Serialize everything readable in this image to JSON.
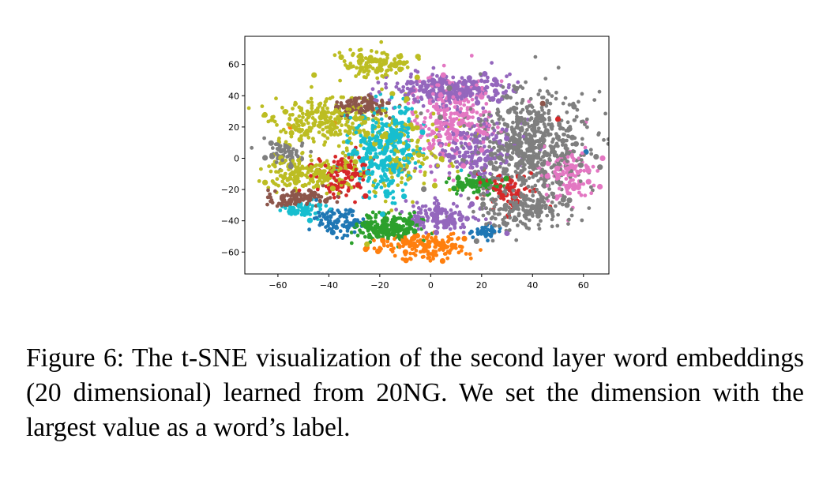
{
  "caption": "Figure 6: The t-SNE visualization of the second layer word embeddings (20 dimensional) learned from 20NG. We set the dimension with the largest value as a word’s label.",
  "chart_data": {
    "type": "scatter",
    "title": "",
    "xlabel": "",
    "ylabel": "",
    "xlim": [
      -73,
      70
    ],
    "ylim": [
      -74,
      78
    ],
    "xticks": [
      -60,
      -40,
      -20,
      0,
      20,
      40,
      60
    ],
    "yticks": [
      60,
      40,
      20,
      0,
      -20,
      -40,
      -60
    ],
    "xtick_labels": [
      "−60",
      "−40",
      "−20",
      "0",
      "20",
      "40",
      "60"
    ],
    "ytick_labels": [
      "60",
      "40",
      "20",
      "0",
      "−20",
      "−40",
      "−60"
    ],
    "grid": false,
    "legend": "none",
    "colors": [
      "#1f77b4",
      "#ff7f0e",
      "#2ca02c",
      "#d62728",
      "#9467bd",
      "#8c564b",
      "#e377c2",
      "#7f7f7f",
      "#bcbd22",
      "#17becf"
    ],
    "clusters": [
      {
        "name": "grey-right",
        "color": "#7f7f7f",
        "cx": 38,
        "cy": 8,
        "sx": 12,
        "sy": 18,
        "n": 650
      },
      {
        "name": "grey-lower",
        "color": "#7f7f7f",
        "cx": 35,
        "cy": -33,
        "sx": 9,
        "sy": 6,
        "n": 160
      },
      {
        "name": "grey-left",
        "color": "#7f7f7f",
        "cx": -57,
        "cy": 3,
        "sx": 4,
        "sy": 4,
        "n": 60
      },
      {
        "name": "purple-top",
        "color": "#9467bd",
        "cx": 8,
        "cy": 44,
        "sx": 12,
        "sy": 5,
        "n": 260
      },
      {
        "name": "purple-mid",
        "color": "#9467bd",
        "cx": 18,
        "cy": 5,
        "sx": 8,
        "sy": 10,
        "n": 180
      },
      {
        "name": "purple-bottom",
        "color": "#9467bd",
        "cx": 5,
        "cy": -38,
        "sx": 7,
        "sy": 5,
        "n": 130
      },
      {
        "name": "pink-center",
        "color": "#e377c2",
        "cx": 8,
        "cy": 25,
        "sx": 8,
        "sy": 14,
        "n": 260
      },
      {
        "name": "pink-right",
        "color": "#e377c2",
        "cx": 55,
        "cy": -10,
        "sx": 5,
        "sy": 10,
        "n": 110
      },
      {
        "name": "olive-top",
        "color": "#bcbd22",
        "cx": -22,
        "cy": 60,
        "sx": 7,
        "sy": 4,
        "n": 120
      },
      {
        "name": "olive-upper-left",
        "color": "#bcbd22",
        "cx": -42,
        "cy": 25,
        "sx": 10,
        "sy": 8,
        "n": 260
      },
      {
        "name": "olive-lower-left",
        "color": "#bcbd22",
        "cx": -47,
        "cy": -10,
        "sx": 10,
        "sy": 5,
        "n": 200
      },
      {
        "name": "olive-center",
        "color": "#bcbd22",
        "cx": -12,
        "cy": 5,
        "sx": 10,
        "sy": 14,
        "n": 160
      },
      {
        "name": "cyan-center",
        "color": "#17becf",
        "cx": -18,
        "cy": 5,
        "sx": 7,
        "sy": 14,
        "n": 320
      },
      {
        "name": "cyan-left",
        "color": "#17becf",
        "cx": -50,
        "cy": -33,
        "sx": 5,
        "sy": 3,
        "n": 60
      },
      {
        "name": "green-bottom",
        "color": "#2ca02c",
        "cx": -17,
        "cy": -44,
        "sx": 6,
        "sy": 5,
        "n": 180
      },
      {
        "name": "green-mid",
        "color": "#2ca02c",
        "cx": 17,
        "cy": -17,
        "sx": 5,
        "sy": 3,
        "n": 70
      },
      {
        "name": "orange-bottom",
        "color": "#ff7f0e",
        "cx": -4,
        "cy": -57,
        "sx": 9,
        "sy": 4,
        "n": 170
      },
      {
        "name": "red-left",
        "color": "#d62728",
        "cx": -35,
        "cy": -10,
        "sx": 5,
        "sy": 7,
        "n": 110
      },
      {
        "name": "red-right",
        "color": "#d62728",
        "cx": 30,
        "cy": -20,
        "sx": 6,
        "sy": 5,
        "n": 80
      },
      {
        "name": "brown-left",
        "color": "#8c564b",
        "cx": -52,
        "cy": -25,
        "sx": 7,
        "sy": 3,
        "n": 100
      },
      {
        "name": "brown-top",
        "color": "#8c564b",
        "cx": -27,
        "cy": 33,
        "sx": 6,
        "sy": 3,
        "n": 90
      },
      {
        "name": "blue-bottom",
        "color": "#1f77b4",
        "cx": -37,
        "cy": -41,
        "sx": 4,
        "sy": 4,
        "n": 90
      },
      {
        "name": "blue-right",
        "color": "#1f77b4",
        "cx": 22,
        "cy": -47,
        "sx": 3,
        "sy": 2,
        "n": 40
      }
    ],
    "outliers": [
      {
        "x": -25,
        "y": -55,
        "color": "#bcbd22"
      },
      {
        "x": 18,
        "y": -53,
        "color": "#7f7f7f"
      },
      {
        "x": 61,
        "y": 4,
        "color": "#1f77b4"
      },
      {
        "x": 62,
        "y": -8,
        "color": "#e377c2"
      },
      {
        "x": 62,
        "y": -15,
        "color": "#e377c2"
      },
      {
        "x": -5,
        "y": 65,
        "color": "#bcbd22"
      },
      {
        "x": -55,
        "y": 20,
        "color": "#ff7f0e"
      },
      {
        "x": -38,
        "y": 22,
        "color": "#ff7f0e"
      },
      {
        "x": 30,
        "y": -48,
        "color": "#9467bd"
      },
      {
        "x": 50,
        "y": 25,
        "color": "#d62728"
      },
      {
        "x": 44,
        "y": 35,
        "color": "#8c564b"
      }
    ]
  }
}
